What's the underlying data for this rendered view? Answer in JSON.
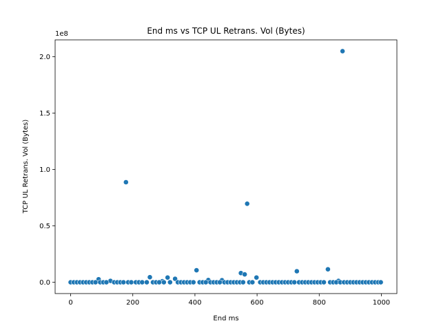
{
  "chart_data": {
    "type": "scatter",
    "title": "End ms vs TCP UL Retrans. Vol (Bytes)",
    "xlabel": "End ms",
    "ylabel": "TCP UL Retrans. Vol (Bytes)",
    "y_offset_label": "1e8",
    "xlim": [
      -50,
      1050
    ],
    "ylim": [
      -10000000,
      215000000
    ],
    "x_ticks": [
      0,
      200,
      400,
      600,
      800,
      1000
    ],
    "x_tick_labels": [
      "0",
      "200",
      "400",
      "600",
      "800",
      "1000"
    ],
    "y_ticks": [
      0,
      50000000,
      100000000,
      150000000,
      200000000
    ],
    "y_tick_labels": [
      "0.0",
      "0.5",
      "1.0",
      "1.5",
      "2.0"
    ],
    "grid": false,
    "color": "#1f77b4",
    "points": [
      [
        875,
        205000000
      ],
      [
        178,
        88800000
      ],
      [
        568,
        69700000
      ],
      [
        828,
        11500000
      ],
      [
        405,
        10700000
      ],
      [
        728,
        9800000
      ],
      [
        548,
        8200000
      ],
      [
        560,
        7000000
      ],
      [
        255,
        4500000
      ],
      [
        312,
        4200000
      ],
      [
        598,
        4200000
      ],
      [
        336,
        3100000
      ],
      [
        90,
        2700000
      ],
      [
        443,
        2000000
      ],
      [
        487,
        1800000
      ],
      [
        128,
        1200000
      ],
      [
        295,
        1000000
      ],
      [
        862,
        1300000
      ],
      [
        0,
        0
      ],
      [
        10,
        0
      ],
      [
        20,
        0
      ],
      [
        30,
        0
      ],
      [
        40,
        0
      ],
      [
        50,
        0
      ],
      [
        60,
        0
      ],
      [
        70,
        0
      ],
      [
        80,
        0
      ],
      [
        95,
        0
      ],
      [
        105,
        0
      ],
      [
        115,
        0
      ],
      [
        140,
        0
      ],
      [
        150,
        0
      ],
      [
        160,
        0
      ],
      [
        170,
        0
      ],
      [
        185,
        0
      ],
      [
        195,
        0
      ],
      [
        210,
        0
      ],
      [
        220,
        0
      ],
      [
        230,
        0
      ],
      [
        245,
        0
      ],
      [
        265,
        0
      ],
      [
        275,
        0
      ],
      [
        285,
        0
      ],
      [
        300,
        0
      ],
      [
        320,
        0
      ],
      [
        345,
        0
      ],
      [
        355,
        0
      ],
      [
        365,
        0
      ],
      [
        375,
        0
      ],
      [
        385,
        0
      ],
      [
        395,
        0
      ],
      [
        415,
        0
      ],
      [
        425,
        0
      ],
      [
        435,
        0
      ],
      [
        450,
        0
      ],
      [
        460,
        0
      ],
      [
        470,
        0
      ],
      [
        480,
        0
      ],
      [
        495,
        0
      ],
      [
        505,
        0
      ],
      [
        515,
        0
      ],
      [
        525,
        0
      ],
      [
        535,
        0
      ],
      [
        545,
        0
      ],
      [
        555,
        0
      ],
      [
        575,
        0
      ],
      [
        585,
        0
      ],
      [
        610,
        0
      ],
      [
        620,
        0
      ],
      [
        630,
        0
      ],
      [
        640,
        0
      ],
      [
        650,
        0
      ],
      [
        660,
        0
      ],
      [
        670,
        0
      ],
      [
        680,
        0
      ],
      [
        690,
        0
      ],
      [
        700,
        0
      ],
      [
        710,
        0
      ],
      [
        720,
        0
      ],
      [
        735,
        0
      ],
      [
        745,
        0
      ],
      [
        755,
        0
      ],
      [
        765,
        0
      ],
      [
        775,
        0
      ],
      [
        785,
        0
      ],
      [
        795,
        0
      ],
      [
        805,
        0
      ],
      [
        815,
        0
      ],
      [
        835,
        0
      ],
      [
        845,
        0
      ],
      [
        855,
        0
      ],
      [
        868,
        0
      ],
      [
        880,
        0
      ],
      [
        890,
        0
      ],
      [
        900,
        0
      ],
      [
        910,
        0
      ],
      [
        920,
        0
      ],
      [
        930,
        0
      ],
      [
        940,
        0
      ],
      [
        950,
        0
      ],
      [
        960,
        0
      ],
      [
        970,
        0
      ],
      [
        980,
        0
      ],
      [
        990,
        0
      ],
      [
        998,
        0
      ]
    ]
  }
}
